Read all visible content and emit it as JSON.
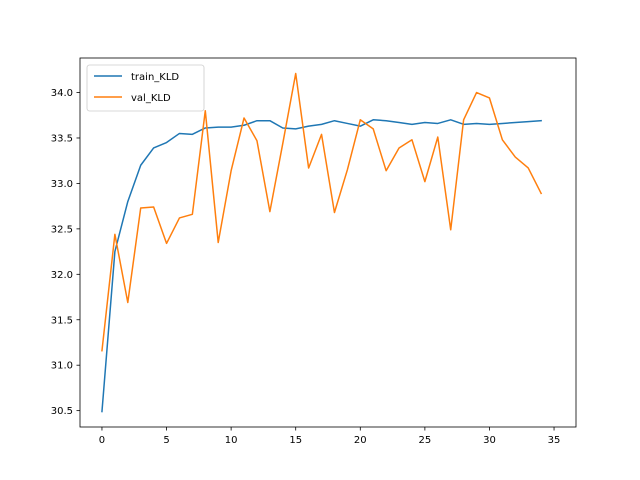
{
  "chart_data": {
    "type": "line",
    "title": "",
    "xlabel": "",
    "ylabel": "",
    "xlim": [
      -1.7,
      36.7
    ],
    "ylim": [
      30.32,
      34.38
    ],
    "xticks": [
      0,
      5,
      10,
      15,
      20,
      25,
      30,
      35
    ],
    "yticks": [
      30.5,
      31.0,
      31.5,
      32.0,
      32.5,
      33.0,
      33.5,
      34.0
    ],
    "grid": false,
    "legend": "upper-left",
    "x": [
      0,
      1,
      2,
      3,
      4,
      5,
      6,
      7,
      8,
      9,
      10,
      11,
      12,
      13,
      14,
      15,
      16,
      17,
      18,
      19,
      20,
      21,
      22,
      23,
      24,
      25,
      26,
      27,
      28,
      29,
      30,
      31,
      32,
      33,
      34
    ],
    "series": [
      {
        "name": "train_KLD",
        "color": "#1f77b4",
        "values": [
          30.49,
          32.25,
          32.8,
          33.2,
          33.39,
          33.45,
          33.55,
          33.54,
          33.61,
          33.62,
          33.62,
          33.64,
          33.69,
          33.69,
          33.61,
          33.6,
          33.63,
          33.65,
          33.69,
          33.66,
          33.63,
          33.7,
          33.69,
          33.67,
          33.65,
          33.67,
          33.66,
          33.7,
          33.65,
          33.66,
          33.65,
          33.66,
          33.67,
          33.68,
          33.69
        ]
      },
      {
        "name": "val_KLD",
        "color": "#ff7f0e",
        "values": [
          31.16,
          32.44,
          31.69,
          32.73,
          32.74,
          32.34,
          32.62,
          32.66,
          33.8,
          32.35,
          33.14,
          33.72,
          33.47,
          32.69,
          33.44,
          34.21,
          33.17,
          33.54,
          32.68,
          33.15,
          33.7,
          33.6,
          33.14,
          33.39,
          33.48,
          33.02,
          33.51,
          32.49,
          33.7,
          34.0,
          33.94,
          33.48,
          33.29,
          33.17,
          32.89
        ]
      }
    ]
  }
}
